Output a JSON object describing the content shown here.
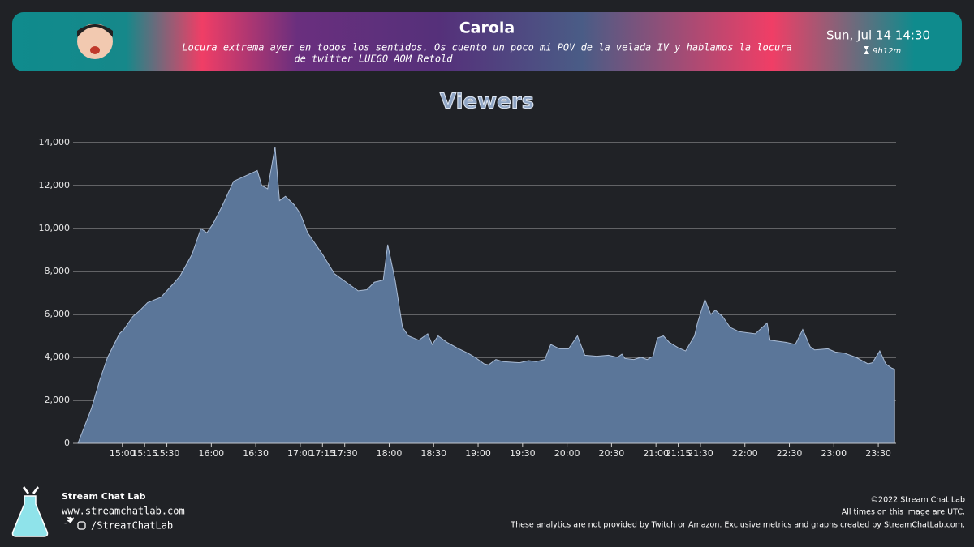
{
  "header": {
    "title": "Carola",
    "subtitle": [
      "Locura extrema ayer en todos los sentidos. Os cuento un poco mi POV de la velada IV y hablamos la locura",
      "de twitter LUEGO AOM Retold"
    ],
    "date": "Sun, Jul 14 14:30",
    "duration": "9h12m"
  },
  "chart_data": {
    "type": "area",
    "title": "Viewers",
    "color": "#5b7699",
    "grid": true,
    "x": [
      "14:30",
      "14:39",
      "14:45",
      "14:50",
      "14:58",
      "15:01",
      "15:07",
      "15:12",
      "15:17",
      "15:26",
      "15:34",
      "15:39",
      "15:47",
      "15:53",
      "15:57",
      "16:01",
      "16:07",
      "16:15",
      "16:23",
      "16:31",
      "16:34",
      "16:38",
      "16:43",
      "16:46",
      "16:50",
      "16:56",
      "17:00",
      "17:05",
      "17:15",
      "17:23",
      "17:31",
      "17:39",
      "17:45",
      "17:50",
      "17:56",
      "17:59",
      "18:04",
      "18:09",
      "18:13",
      "18:20",
      "18:26",
      "18:29",
      "18:33",
      "18:39",
      "18:47",
      "18:53",
      "18:58",
      "19:04",
      "19:07",
      "19:12",
      "19:17",
      "19:28",
      "19:34",
      "19:39",
      "19:45",
      "19:49",
      "19:55",
      "20:01",
      "20:07",
      "20:12",
      "20:20",
      "20:28",
      "20:34",
      "20:37",
      "20:39",
      "20:45",
      "20:50",
      "20:54",
      "20:58",
      "21:01",
      "21:05",
      "21:09",
      "21:15",
      "21:20",
      "21:23",
      "21:26",
      "21:28",
      "21:33",
      "21:37",
      "21:40",
      "21:45",
      "21:50",
      "21:56",
      "22:07",
      "22:15",
      "22:17",
      "22:28",
      "22:34",
      "22:39",
      "22:44",
      "22:47",
      "22:56",
      "23:01",
      "23:07",
      "23:15",
      "23:23",
      "23:26",
      "23:31",
      "23:35",
      "23:39",
      "23:41"
    ],
    "values": [
      0,
      1600,
      3000,
      4000,
      5100,
      5300,
      5900,
      6200,
      6550,
      6800,
      7400,
      7800,
      8800,
      10000,
      9800,
      10200,
      11000,
      12200,
      12450,
      12700,
      12000,
      11850,
      13800,
      11300,
      11500,
      11100,
      10700,
      9800,
      8800,
      7900,
      7500,
      7100,
      7150,
      7500,
      7600,
      9250,
      7600,
      5400,
      5000,
      4800,
      5100,
      4600,
      5000,
      4700,
      4400,
      4200,
      4000,
      3700,
      3650,
      3900,
      3800,
      3750,
      3850,
      3800,
      3900,
      4600,
      4400,
      4400,
      5000,
      4100,
      4050,
      4100,
      4000,
      4150,
      3950,
      3900,
      4000,
      3900,
      4050,
      4900,
      5000,
      4700,
      4450,
      4300,
      4650,
      5000,
      5600,
      6700,
      6000,
      6200,
      5900,
      5400,
      5200,
      5100,
      5600,
      4800,
      4700,
      4600,
      5300,
      4500,
      4350,
      4400,
      4250,
      4200,
      4000,
      3700,
      3750,
      4300,
      3700,
      3500,
      3450
    ],
    "xlim": [
      "14:30",
      "23:42"
    ],
    "xticks": [
      "15:00",
      "15:15",
      "15:30",
      "16:00",
      "16:30",
      "17:00",
      "17:15",
      "17:30",
      "18:00",
      "18:30",
      "19:00",
      "19:30",
      "20:00",
      "20:30",
      "21:00",
      "21:15",
      "21:30",
      "22:00",
      "22:30",
      "23:00",
      "23:30"
    ],
    "ylim": [
      0,
      14000
    ],
    "yticks": [
      0,
      {
        "value": 2000,
        "label": "2,000"
      },
      {
        "value": 4000,
        "label": "4,000"
      },
      {
        "value": 6000,
        "label": "6,000"
      },
      {
        "value": 8000,
        "label": "8,000"
      },
      {
        "value": 10000,
        "label": "10,000"
      },
      {
        "value": 12000,
        "label": "12,000"
      },
      {
        "value": 14000,
        "label": "14,000"
      }
    ]
  },
  "footer": {
    "brand": "Stream Chat Lab",
    "url": "www.streamchatlab.com",
    "handle": "/StreamChatLab",
    "copyright": "©2022 Stream Chat Lab",
    "utc_note": "All times on this image are UTC.",
    "disclaimer": "These analytics are not provided by Twitch or Amazon. Exclusive metrics and graphs created by StreamChatLab.com."
  }
}
